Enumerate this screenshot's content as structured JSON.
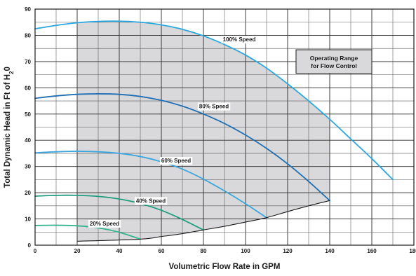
{
  "chart_data": {
    "type": "line",
    "xlabel": "Volumetric Flow Rate in GPM",
    "ylabel": "Total Dynamic Head in Ft of H",
    "ylabel_sub": "2",
    "ylabel_suffix": "0",
    "xlim": [
      0,
      180
    ],
    "ylim": [
      0,
      90
    ],
    "x_ticks": [
      0,
      20,
      40,
      60,
      80,
      100,
      120,
      140,
      160,
      180
    ],
    "y_ticks": [
      0,
      10,
      20,
      30,
      40,
      50,
      60,
      70,
      80,
      90
    ],
    "grid": true,
    "series": [
      {
        "name": "100% Speed",
        "color": "#29a8e0",
        "x": [
          0,
          10,
          20,
          30,
          40,
          50,
          60,
          70,
          80,
          90,
          100,
          110,
          120,
          130,
          140,
          150,
          160,
          170
        ],
        "y": [
          82.5,
          83.8,
          84.8,
          85.3,
          85.4,
          85.0,
          84.0,
          82.3,
          79.8,
          76.5,
          72.5,
          67.5,
          61.5,
          55.0,
          48.0,
          40.5,
          33.0,
          25.0
        ]
      },
      {
        "name": "80% Speed",
        "color": "#1f6fb5",
        "x": [
          0,
          10,
          20,
          30,
          40,
          50,
          60,
          70,
          80,
          90,
          100,
          110,
          120,
          130,
          140
        ],
        "y": [
          56.0,
          56.9,
          57.5,
          57.7,
          57.5,
          56.7,
          55.2,
          53.0,
          50.0,
          46.4,
          42.0,
          36.9,
          31.0,
          24.3,
          17.0
        ]
      },
      {
        "name": "60% Speed",
        "color": "#3aa6de",
        "x": [
          0,
          10,
          20,
          30,
          40,
          50,
          60,
          70,
          80,
          90,
          100,
          110
        ],
        "y": [
          35.2,
          35.6,
          35.8,
          35.6,
          35.0,
          33.8,
          31.8,
          29.0,
          25.2,
          20.7,
          15.8,
          10.5
        ]
      },
      {
        "name": "40% Speed",
        "color": "#1f9e7e",
        "x": [
          0,
          10,
          20,
          30,
          40,
          50,
          60,
          70,
          80
        ],
        "y": [
          18.7,
          19.0,
          19.0,
          18.6,
          17.6,
          15.9,
          13.3,
          9.8,
          5.8
        ]
      },
      {
        "name": "20% Speed",
        "color": "#33b58f",
        "x": [
          0,
          10,
          20,
          30,
          40,
          50
        ],
        "y": [
          7.5,
          7.6,
          7.4,
          6.6,
          4.9,
          2.3
        ]
      }
    ],
    "operating_region": {
      "x": [
        20,
        20,
        30,
        40,
        50,
        60,
        70,
        80,
        90,
        100,
        110,
        120,
        130,
        140,
        140,
        130,
        120,
        110,
        100,
        90,
        80,
        70,
        60,
        50
      ],
      "y": [
        1.5,
        84.8,
        85.3,
        85.4,
        85.0,
        84.0,
        82.3,
        79.8,
        76.5,
        72.5,
        67.5,
        61.5,
        55.0,
        48.0,
        17.0,
        15.0,
        12.8,
        10.5,
        8.8,
        7.2,
        5.8,
        4.4,
        3.3,
        2.3
      ],
      "fill": "#d9d9db"
    },
    "system_curve": {
      "x": [
        20,
        50,
        60,
        70,
        80,
        90,
        100,
        110,
        120,
        130,
        140
      ],
      "y": [
        1.5,
        2.3,
        3.3,
        4.4,
        5.8,
        7.2,
        8.8,
        10.5,
        12.8,
        15.0,
        17.0
      ]
    },
    "annotations": [
      {
        "text": "100% Speed",
        "x": 97,
        "y": 78.5
      },
      {
        "text": "80% Speed",
        "x": 85,
        "y": 53.0
      },
      {
        "text": "60% Speed",
        "x": 67,
        "y": 32.3
      },
      {
        "text": "40% Speed",
        "x": 55,
        "y": 17.0
      },
      {
        "text": "20% Speed",
        "x": 33,
        "y": 8.3
      }
    ],
    "legend_box": {
      "lines": [
        "Operating Range",
        "for Flow Control"
      ],
      "x_range": [
        124,
        160
      ],
      "y_range": [
        65.5,
        74.5
      ]
    }
  }
}
